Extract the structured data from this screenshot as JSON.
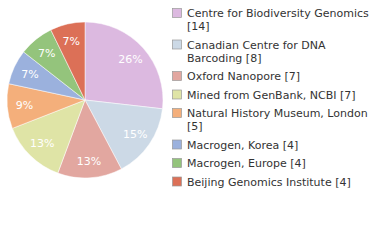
{
  "chart_data": {
    "type": "pie",
    "categories": [
      "Centre for Biodiversity Genomics [14]",
      "Canadian Centre for DNA Barcoding [8]",
      "Oxford Nanopore [7]",
      "Mined from GenBank, NCBI [7]",
      "Natural History Museum, London [5]",
      "Macrogen, Korea [4]",
      "Macrogen, Europe [4]",
      "Beijing Genomics Institute [4]"
    ],
    "values": [
      26,
      15,
      13,
      13,
      9,
      7,
      7,
      7
    ],
    "value_labels": [
      "26%",
      "15%",
      "13%",
      "13%",
      "9%",
      "7%",
      "7%",
      "7%"
    ],
    "colors": [
      "#dcb9e0",
      "#ccd9e6",
      "#e2a7a0",
      "#dfe4a6",
      "#f4af7b",
      "#9bb1dd",
      "#94c47c",
      "#dc7057"
    ],
    "data_labels": true,
    "legend": "right"
  }
}
